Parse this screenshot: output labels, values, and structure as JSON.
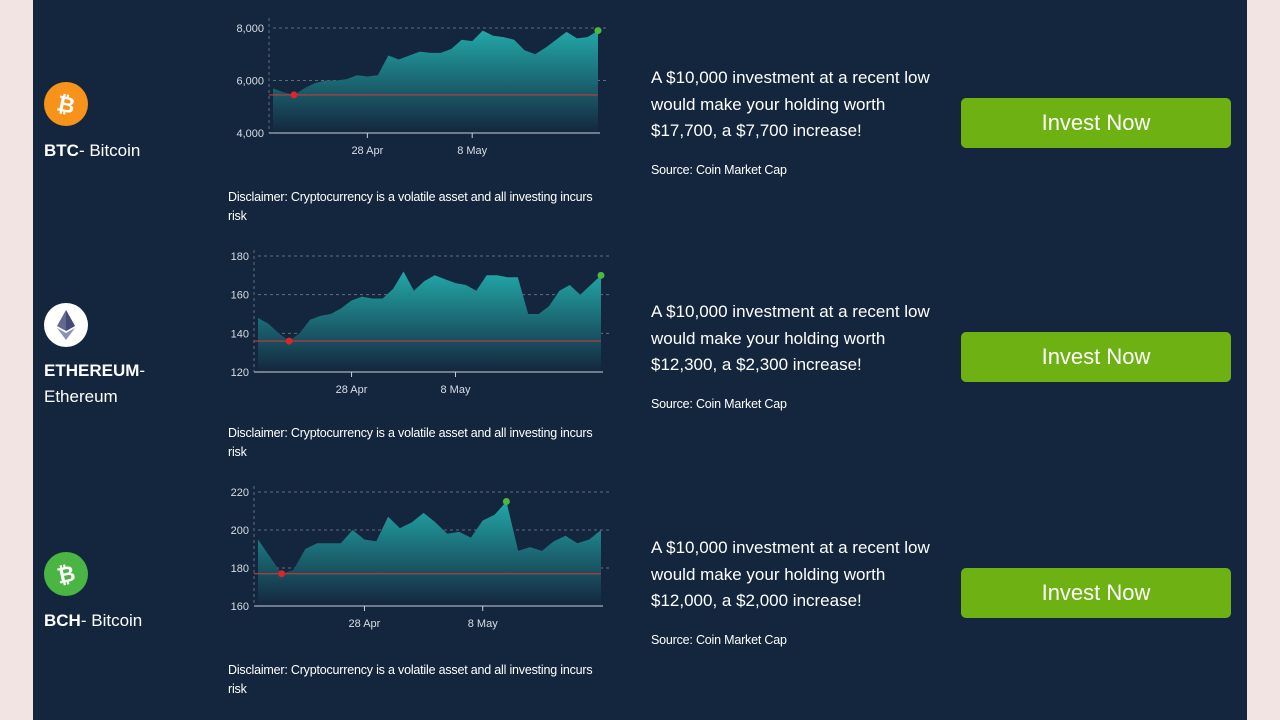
{
  "colors": {
    "panel": "#14263d",
    "page": "#f3e4e4",
    "button": "#6eb113",
    "area_top": "#22a8a8",
    "area_bottom": "#14263d",
    "baseline": "#c23b3b",
    "low_marker": "#d9262b",
    "high_marker": "#4db83a",
    "btc_icon": "#f7931a",
    "eth_icon": "#ffffff",
    "bch_icon": "#4bb543"
  },
  "rows": [
    {
      "symbol": "BTC",
      "name": "- Bitcoin",
      "icon": "bitcoin-icon",
      "investment_text": "A $10,000 investment at a recent low would make your holding worth $17,700, a $7,700 increase!",
      "source": "Source: Coin Market Cap",
      "button_label": "Invest Now",
      "disclaimer": "Disclaimer: Cryptocurrency is a volatile asset and all investing incurs risk"
    },
    {
      "symbol": "ETHEREUM",
      "name": "- Ethereum",
      "icon": "ethereum-icon",
      "investment_text": "A $10,000 investment at a recent low would make your holding worth $12,300, a $2,300 increase!",
      "source": "Source: Coin Market Cap",
      "button_label": "Invest Now",
      "disclaimer": "Disclaimer: Cryptocurrency is a volatile asset and all investing incurs risk"
    },
    {
      "symbol": "BCH",
      "name": "- Bitcoin",
      "icon": "bitcoin-cash-icon",
      "investment_text": "A $10,000 investment at a recent low would make your holding worth $12,000, a $2,000 increase!",
      "source": "Source: Coin Market Cap",
      "button_label": "Invest Now",
      "disclaimer": "Disclaimer: Cryptocurrency is a volatile asset and all investing incurs risk"
    }
  ],
  "chart_data": [
    {
      "type": "area",
      "x_tick_labels": [
        "28 Apr",
        "8 May"
      ],
      "x_tick_index": [
        9,
        19
      ],
      "y_ticks": [
        4000,
        6000,
        8000
      ],
      "y_tick_labels": [
        "4,000",
        "6,000",
        "8,000"
      ],
      "ylim": [
        4000,
        8150
      ],
      "values": [
        5700,
        5550,
        5450,
        5700,
        5900,
        6000,
        6000,
        6050,
        6200,
        6150,
        6200,
        6950,
        6800,
        6950,
        7100,
        7050,
        7050,
        7200,
        7550,
        7500,
        7900,
        7700,
        7650,
        7550,
        7150,
        7000,
        7250,
        7550,
        7850,
        7600,
        7650,
        7900
      ],
      "low_index": 2,
      "high_index": 31,
      "reference_level": 5450,
      "grid": true
    },
    {
      "type": "area",
      "x_tick_labels": [
        "28 Apr",
        "8 May"
      ],
      "x_tick_index": [
        9,
        19
      ],
      "y_ticks": [
        120,
        140,
        160,
        180
      ],
      "y_tick_labels": [
        "120",
        "140",
        "160",
        "180"
      ],
      "ylim": [
        120,
        180
      ],
      "values": [
        148,
        145,
        140,
        136,
        140,
        147,
        149,
        150,
        153,
        157,
        159,
        158,
        158,
        163,
        172,
        162,
        167,
        170,
        168,
        166,
        165,
        162,
        170,
        170,
        169,
        169,
        150,
        150,
        154,
        162,
        165,
        160,
        165,
        170
      ],
      "low_index": 3,
      "high_index": 33,
      "reference_level": 136,
      "grid": true
    },
    {
      "type": "area",
      "x_tick_labels": [
        "28 Apr",
        "8 May"
      ],
      "x_tick_index": [
        9,
        19
      ],
      "y_ticks": [
        160,
        180,
        200,
        220
      ],
      "y_tick_labels": [
        "160",
        "180",
        "200",
        "220"
      ],
      "ylim": [
        160,
        220
      ],
      "values": [
        195,
        186,
        177,
        179,
        190,
        193,
        193,
        193,
        200,
        195,
        194,
        207,
        201,
        204,
        209,
        204,
        198,
        199,
        196,
        205,
        208,
        215,
        189,
        191,
        189,
        194,
        197,
        193,
        195,
        200
      ],
      "low_index": 2,
      "high_index": 21,
      "reference_level": 177,
      "grid": true
    }
  ]
}
